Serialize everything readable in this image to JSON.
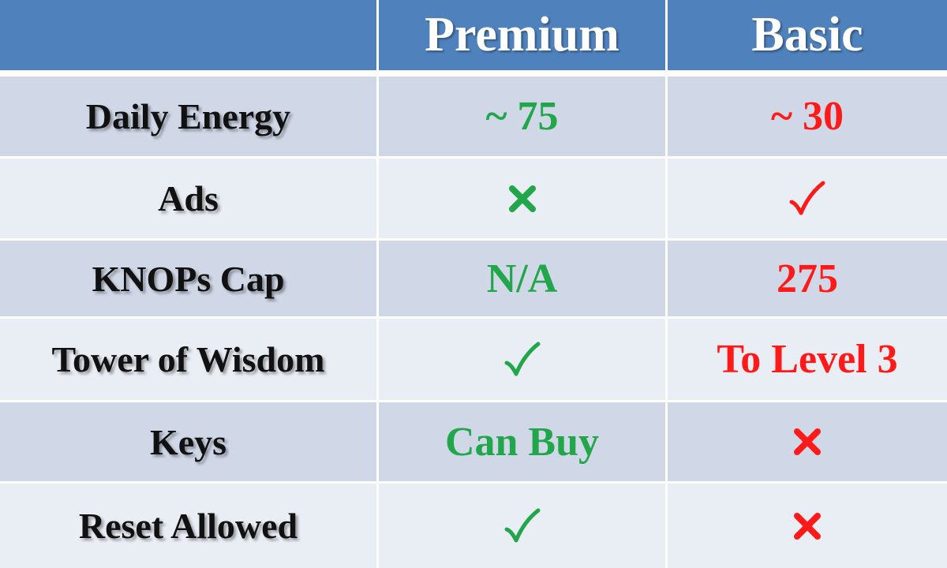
{
  "header": {
    "col0": "",
    "premium": "Premium",
    "basic": "Basic"
  },
  "colors": {
    "header_bg": "#4f81bd",
    "row_dark": "#d0d8e8",
    "row_light": "#e9edf4",
    "premium": "#22a64a",
    "basic": "#ff1a1a"
  },
  "rows": [
    {
      "feature": "Daily Energy",
      "premium": "~ 75",
      "basic": "~ 30"
    },
    {
      "feature": "Ads",
      "premium_icon": "cross-icon",
      "basic_icon": "check-icon"
    },
    {
      "feature": "KNOPs Cap",
      "premium": "N/A",
      "basic": "275"
    },
    {
      "feature": "Tower of Wisdom",
      "premium_icon": "check-icon",
      "basic": "To Level 3"
    },
    {
      "feature": "Keys",
      "premium": "Can Buy",
      "basic_icon": "cross-icon"
    },
    {
      "feature": "Reset Allowed",
      "premium_icon": "check-icon",
      "basic_icon": "cross-icon"
    }
  ]
}
